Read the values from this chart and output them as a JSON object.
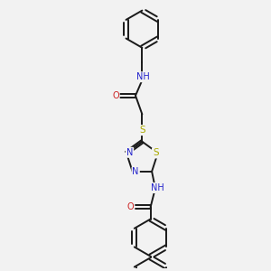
{
  "background_color": "#f2f2f2",
  "bond_color": "#1a1a1a",
  "N_color": "#2222cc",
  "O_color": "#cc2222",
  "S_color": "#aaaa00",
  "line_width": 1.4,
  "font_size": 7.0,
  "fig_size": [
    3.0,
    3.0
  ],
  "dpi": 100,
  "xlim": [
    -2.5,
    2.5
  ],
  "ylim": [
    -5.5,
    4.5
  ]
}
